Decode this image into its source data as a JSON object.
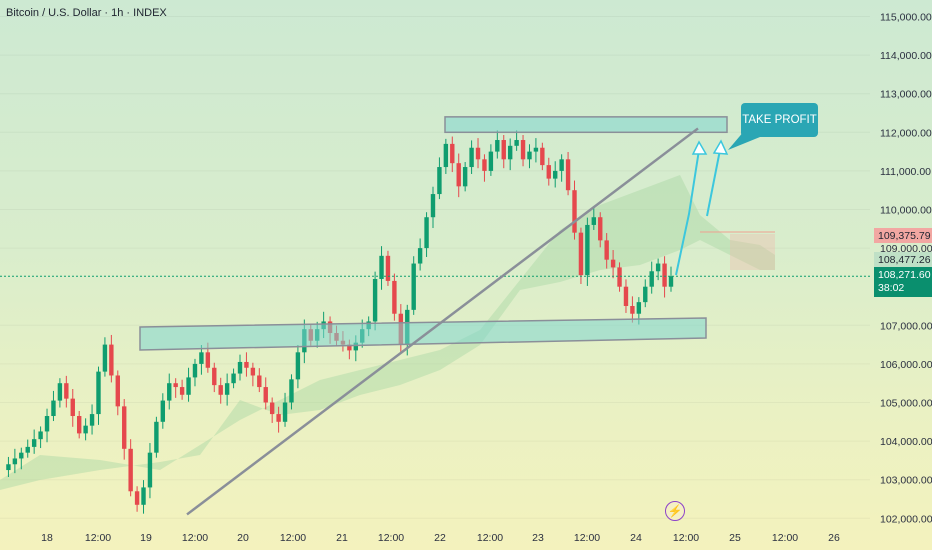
{
  "header": {
    "title": "Bitcoin / U.S. Dollar · 1h · INDEX"
  },
  "price_tags": {
    "level_a": "109,375.79",
    "level_b": "108,477.26",
    "last_price": "108,271.60",
    "countdown": "38:02"
  },
  "annotation": {
    "take_profit": "TAKE PROFIT"
  },
  "colors": {
    "up": "#0f9d6f",
    "down": "#e5484d",
    "zone": "#7fd6cf",
    "cloud": "#a8d8a4",
    "arrow": "#3cc7dd"
  },
  "icons": {
    "event_marker": "lightning-icon"
  },
  "chart_data": {
    "type": "candlestick",
    "title": "Bitcoin / U.S. Dollar · 1h · INDEX",
    "y_ticks": [
      115000,
      114000,
      113000,
      112000,
      111000,
      110000,
      109000,
      107000,
      106000,
      105000,
      104000,
      103000,
      102000
    ],
    "y_tick_labels": [
      "115,000.00",
      "114,000.00",
      "113,000.00",
      "112,000.00",
      "111,000.00",
      "110,000.00",
      "109,000.00",
      "107,000.00",
      "106,000.00",
      "105,000.00",
      "104,000.00",
      "103,000.00",
      "102,000.00"
    ],
    "x_tick_labels": [
      "18",
      "12:00",
      "19",
      "12:00",
      "20",
      "12:00",
      "21",
      "12:00",
      "22",
      "12:00",
      "23",
      "12:00",
      "24",
      "12:00",
      "25",
      "12:00",
      "26"
    ],
    "ylim": [
      101800,
      115400
    ],
    "resistance_zone": [
      112000,
      112400
    ],
    "support_zone": [
      106600,
      107100
    ],
    "trendline": [
      [
        102100,
        0
      ],
      [
        112100,
        1
      ]
    ],
    "projection": [
      108270,
      110000,
      111900
    ],
    "path": [
      103250,
      103400,
      103550,
      103700,
      103850,
      104050,
      104250,
      104650,
      105050,
      105500,
      105100,
      104650,
      104200,
      104400,
      104700,
      105800,
      106500,
      105700,
      104900,
      103800,
      102700,
      102350,
      102800,
      103700,
      104500,
      105050,
      105500,
      105400,
      105200,
      105650,
      106000,
      106300,
      105900,
      105450,
      105200,
      105500,
      105750,
      106050,
      105900,
      105700,
      105400,
      105000,
      104700,
      104500,
      105000,
      105600,
      106300,
      106900,
      106600,
      106900,
      107100,
      106800,
      106600,
      106500,
      106350,
      106550,
      106900,
      107100,
      108200,
      108800,
      108150,
      107300,
      106500,
      107400,
      108600,
      109000,
      109800,
      110400,
      111100,
      111700,
      111200,
      110600,
      111100,
      111600,
      111300,
      111000,
      111500,
      111800,
      111300,
      111650,
      111800,
      111300,
      111500,
      111600,
      111150,
      110800,
      111000,
      111300,
      110500,
      109400,
      108300,
      109600,
      109800,
      109200,
      108700,
      108500,
      108000,
      107500,
      107300,
      107600,
      108000,
      108400,
      108600,
      108000,
      108271.6
    ],
    "x_range": [
      2,
      671
    ]
  }
}
